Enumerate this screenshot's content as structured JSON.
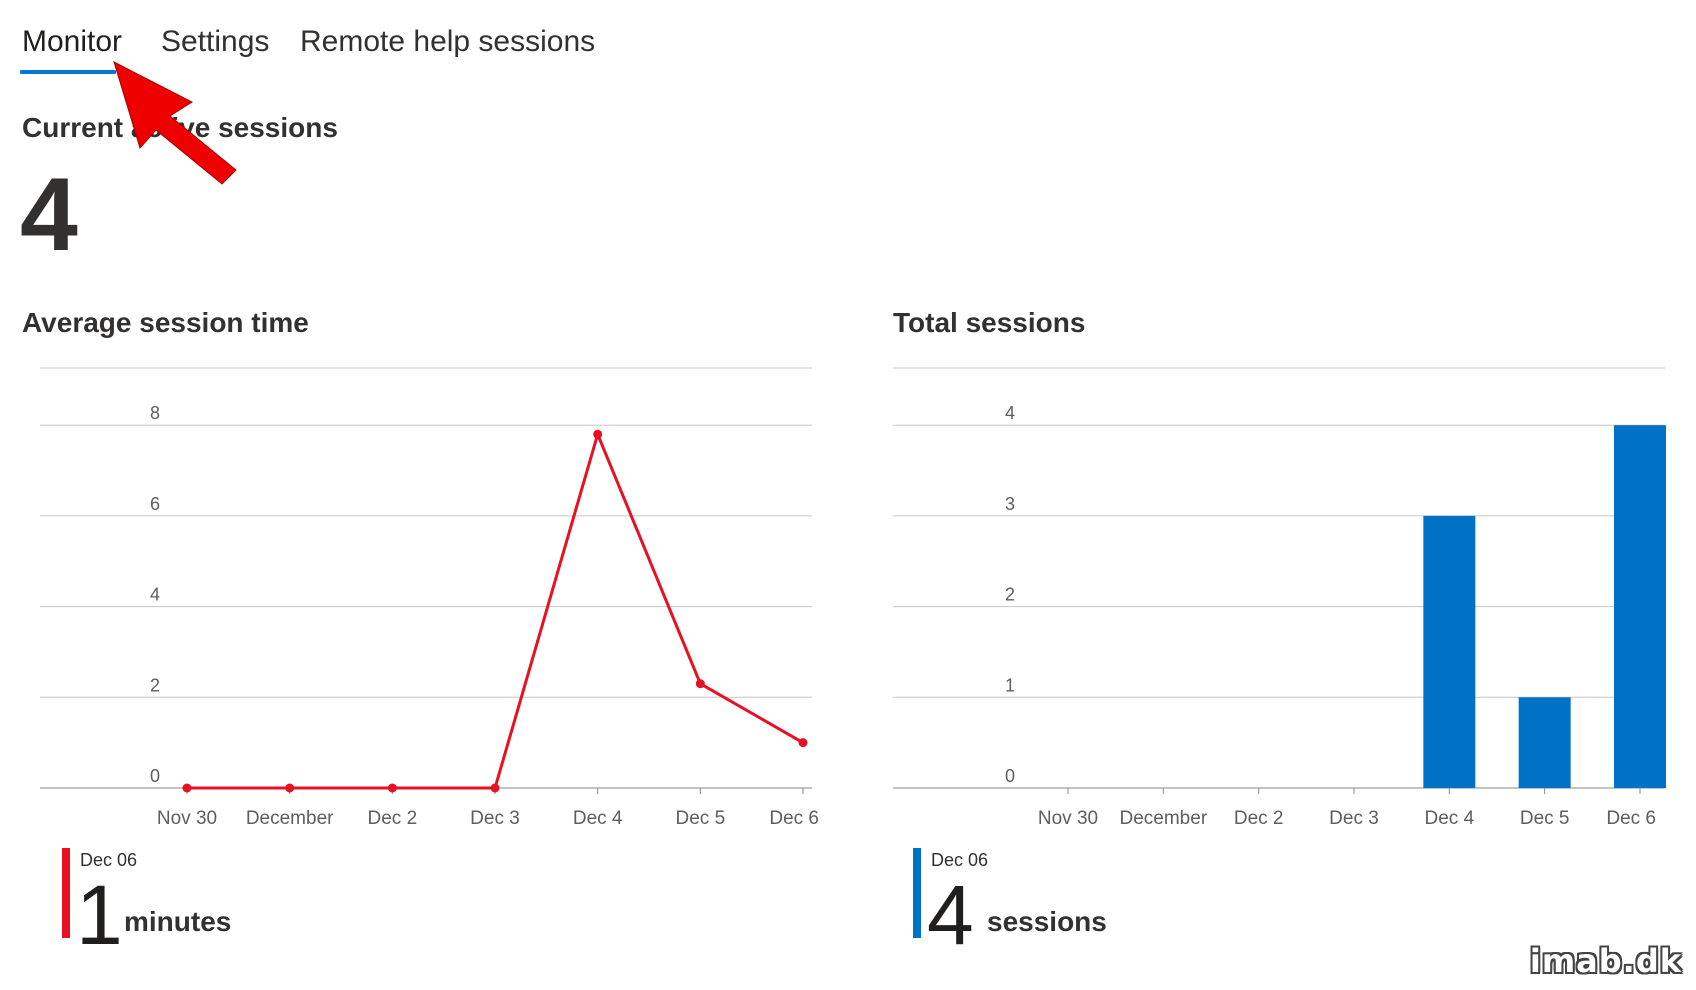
{
  "tabs": [
    {
      "label": "Monitor",
      "active": true
    },
    {
      "label": "Settings",
      "active": false
    },
    {
      "label": "Remote help sessions",
      "active": false
    }
  ],
  "current_active": {
    "title": "Current active sessions",
    "value": "4"
  },
  "avg_session": {
    "title": "Average session time",
    "summary_date": "Dec 06",
    "summary_value": "1",
    "summary_unit": "minutes",
    "accent_color": "#e81123"
  },
  "total_sessions": {
    "title": "Total sessions",
    "summary_date": "Dec 06",
    "summary_value": "4",
    "summary_unit": "sessions",
    "accent_color": "#0072c6"
  },
  "watermark": "imab.dk",
  "chart_data": [
    {
      "type": "line",
      "title": "Average session time",
      "categories": [
        "Nov 30",
        "December",
        "Dec 2",
        "Dec 3",
        "Dec 4",
        "Dec 5",
        "Dec 6"
      ],
      "values": [
        0,
        0,
        0,
        0,
        7.8,
        2.3,
        1.0
      ],
      "yticks": [
        0,
        2,
        4,
        6,
        8
      ],
      "ylim": [
        0,
        8.6
      ],
      "color": "#e81123",
      "grid": true
    },
    {
      "type": "bar",
      "title": "Total sessions",
      "categories": [
        "Nov 30",
        "December",
        "Dec 2",
        "Dec 3",
        "Dec 4",
        "Dec 5",
        "Dec 6"
      ],
      "values": [
        0,
        0,
        0,
        0,
        3,
        1,
        4
      ],
      "yticks": [
        0,
        1,
        2,
        3,
        4
      ],
      "ylim": [
        0,
        4.3
      ],
      "color": "#0072c6",
      "grid": true
    }
  ]
}
